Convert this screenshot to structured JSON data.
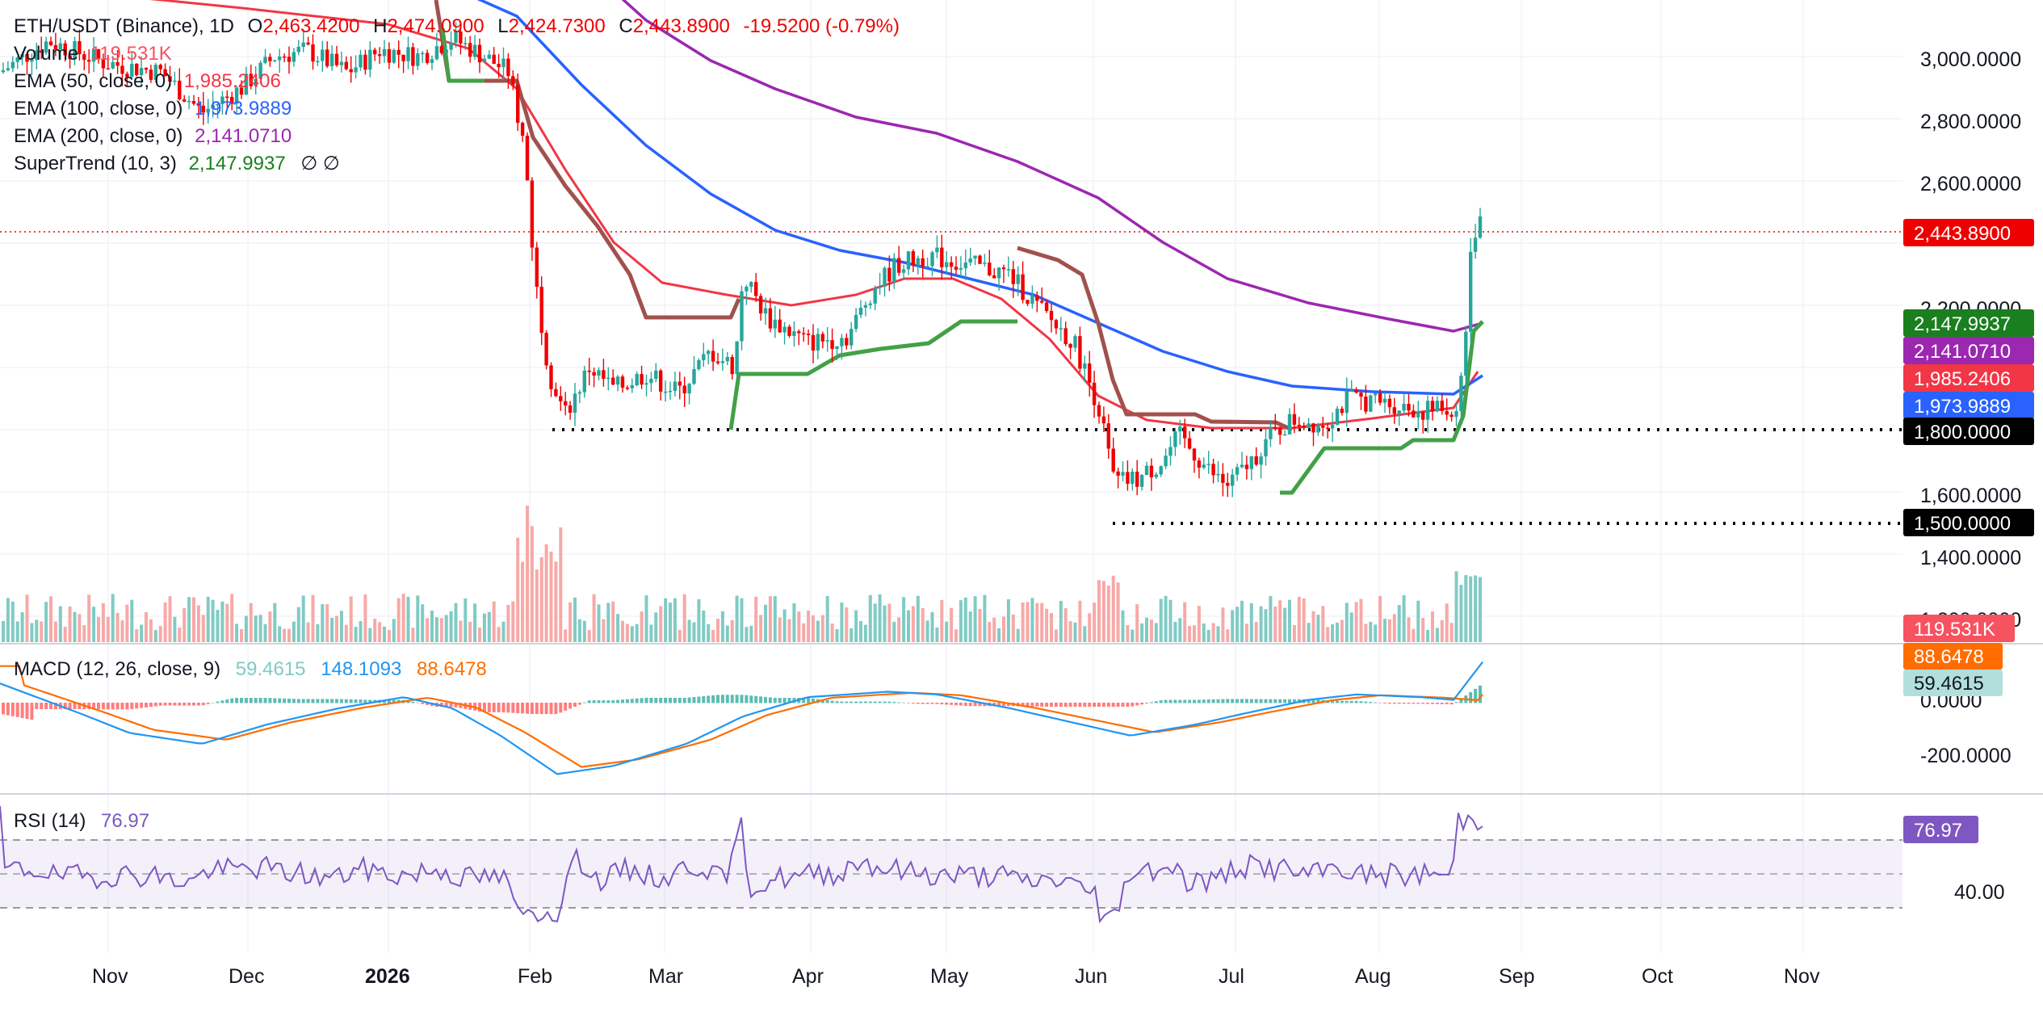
{
  "legend": {
    "symbol": "ETH/USDT (Binance), 1D",
    "o_label": "O",
    "o": "2,463.4200",
    "h_label": "H",
    "h": "2,474.0900",
    "l_label": "L",
    "l": "2,424.7300",
    "c_label": "C",
    "c": "2,443.8900",
    "change": "-19.5200 (-0.79%)",
    "volume_label": "Volume",
    "volume": "119.531K",
    "ema50_label": "EMA (50, close, 0)",
    "ema50": "1,985.2406",
    "ema100_label": "EMA (100, close, 0)",
    "ema100": "1,973.9889",
    "ema200_label": "EMA (200, close, 0)",
    "ema200": "2,141.0710",
    "st_label": "SuperTrend (10, 3)",
    "st": "2,147.9937",
    "st_extra": "∅  ∅",
    "macd_label": "MACD (12, 26, close, 9)",
    "macd_hist": "59.4615",
    "macd_line": "148.1093",
    "macd_signal": "88.6478",
    "rsi_label": "RSI (14)",
    "rsi": "76.97"
  },
  "price_tags": {
    "last": "2,443.8900",
    "st": "2,147.9937",
    "ema200": "2,141.0710",
    "ema50": "1,985.2406",
    "ema100": "1,973.9889",
    "h1800": "1,800.0000",
    "h1500": "1,500.0000",
    "volume": "119.531K",
    "macd_signal": "88.6478",
    "macd_hist": "59.4615",
    "rsi": "76.97"
  },
  "colors": {
    "up": "#26a69a",
    "down": "#ef0000",
    "ema50": "#f23645",
    "ema100": "#2962ff",
    "ema200": "#9c27b0",
    "supertrend_up": "#43a047",
    "supertrend_down": "#a1514d",
    "macd_line": "#2196f3",
    "macd_signal": "#ff6d00",
    "rsi": "#7e57c2"
  },
  "chart_data": {
    "type": "candlestick",
    "title": "ETH/USDT (Binance), 1D",
    "price_axis": {
      "ticks": [
        "3,000.0000",
        "2,800.0000",
        "2,600.0000",
        "2,200.0000",
        "1,600.0000",
        "1,400.0000",
        "1,200.0000"
      ],
      "range": [
        1170,
        3150
      ]
    },
    "time_axis": [
      "Nov",
      "Dec",
      "2026",
      "Feb",
      "Mar",
      "Apr",
      "May",
      "Jun",
      "Jul",
      "Aug",
      "Sep",
      "Oct",
      "Nov"
    ],
    "horizontal_lines": [
      1800,
      1500
    ],
    "last_close": 2443.89,
    "ema_ranges": {
      "ema50": [
        3400,
        1985
      ],
      "ema100": [
        3600,
        1974
      ],
      "ema200": [
        3800,
        2141
      ]
    },
    "macd_axis": {
      "ticks": [
        "0.0000",
        "-200.0000"
      ]
    },
    "rsi_axis": {
      "ticks": [
        "40.00"
      ],
      "bands": [
        70,
        50,
        30
      ]
    }
  }
}
